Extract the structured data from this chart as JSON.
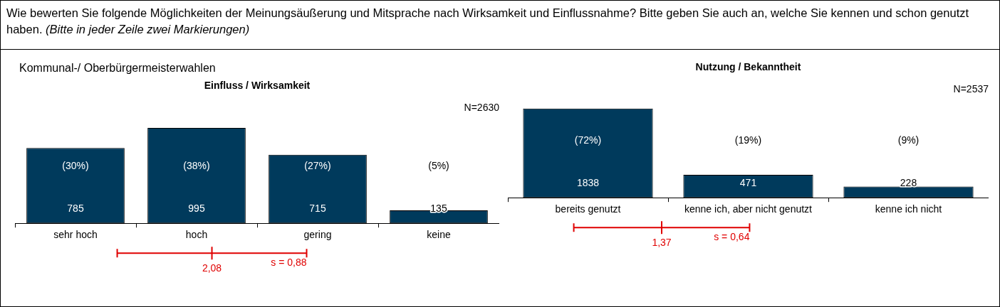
{
  "chart_data": [
    {
      "type": "bar",
      "title": "Einfluss / Wirksamkeit",
      "subtitle": "Kommunal-/ Oberbürgermeisterwahlen",
      "categories": [
        "sehr hoch",
        "hoch",
        "gering",
        "keine"
      ],
      "values": [
        785,
        995,
        715,
        135
      ],
      "color": "#003a5c",
      "data_labels": true,
      "annotations": [
        "Wie bewerten Sie folgende Möglichkeiten der Meinungsäußerung und Mitsprache nach Wirksamkeit und Einflussnahme? Bitte geben Sie auch an, welche Sie kennen und schon genutzt haben.",
        "(Bitte in jeder Zeile zwei Markierungen)",
        "N=2630",
        "(30%)",
        "(38%)",
        "(27%)",
        "(5%)",
        "2,08",
        "s = 0,88"
      ]
    },
    {
      "type": "bar",
      "title": "Nutzung / Bekanntheit",
      "categories": [
        "bereits genutzt",
        "kenne ich, aber nicht genutzt",
        "kenne ich nicht"
      ],
      "values": [
        1838,
        471,
        228
      ],
      "color": "#003a5c",
      "data_labels": true,
      "annotations": [
        "N=2537",
        "(72%)",
        "(19%)",
        "(9%)",
        "1,37",
        "s = 0,64"
      ]
    }
  ]
}
